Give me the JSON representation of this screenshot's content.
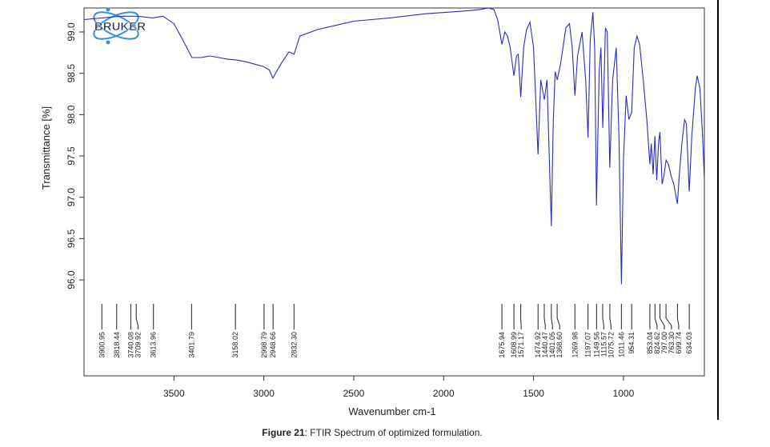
{
  "chart_data": {
    "type": "line",
    "logo": "BRUKER",
    "x_label": "Wavenumber cm-1",
    "y_label": "Transmittance [%]",
    "xlim": [
      4000,
      550
    ],
    "ylim": [
      94.84,
      99.29
    ],
    "xticks": [
      3500,
      3000,
      2500,
      2000,
      1500,
      1000
    ],
    "yticks": [
      {
        "value": 96,
        "label": "96.0"
      },
      96.5,
      {
        "value": 97,
        "label": "97.0"
      },
      97.5,
      {
        "value": 98,
        "label": "98.0"
      },
      98.5,
      {
        "value": 99,
        "label": "99.0"
      }
    ],
    "series": [
      {
        "color": "#2b2bc8",
        "x": [
          4000,
          3800,
          3700,
          3620,
          3560,
          3500,
          3450,
          3400,
          3350,
          3300,
          3250,
          3200,
          3150,
          3100,
          3050,
          3000,
          2970,
          2950,
          2930,
          2900,
          2860,
          2832,
          2800,
          2700,
          2600,
          2500,
          2300,
          2100,
          1900,
          1800,
          1750,
          1720,
          1700,
          1676,
          1660,
          1645,
          1630,
          1609,
          1595,
          1585,
          1571,
          1555,
          1540,
          1520,
          1500,
          1475,
          1460,
          1440,
          1425,
          1401,
          1390,
          1380,
          1368,
          1350,
          1320,
          1300,
          1285,
          1270,
          1255,
          1230,
          1210,
          1197,
          1185,
          1170,
          1160,
          1150,
          1135,
          1125,
          1115,
          1100,
          1090,
          1076,
          1060,
          1040,
          1025,
          1011,
          1000,
          985,
          970,
          954,
          940,
          925,
          910,
          890,
          870,
          853,
          845,
          835,
          825,
          815,
          805,
          797,
          785,
          775,
          763,
          750,
          735,
          720,
          700,
          690,
          675,
          660,
          650,
          634,
          620,
          600,
          590,
          575,
          560,
          550
        ],
        "values": [
          99.15,
          99.19,
          99.19,
          99.17,
          99.19,
          99.1,
          98.9,
          98.69,
          98.69,
          98.71,
          98.69,
          98.67,
          98.66,
          98.64,
          98.61,
          98.58,
          98.54,
          98.44,
          98.52,
          98.63,
          98.76,
          98.73,
          98.95,
          99.03,
          99.08,
          99.13,
          99.17,
          99.22,
          99.25,
          99.27,
          99.29,
          99.27,
          99.15,
          98.85,
          99.0,
          98.95,
          98.81,
          98.47,
          98.71,
          98.73,
          98.21,
          98.81,
          99.02,
          99.12,
          98.81,
          97.52,
          98.42,
          98.18,
          98.42,
          96.65,
          97.94,
          98.52,
          98.42,
          98.61,
          99.05,
          99.1,
          98.81,
          98.23,
          98.71,
          99.0,
          98.42,
          97.72,
          98.9,
          99.24,
          98.81,
          96.9,
          98.52,
          98.81,
          97.84,
          99.05,
          99.0,
          97.36,
          98.42,
          98.81,
          97.74,
          95.95,
          97.45,
          98.23,
          97.94,
          98.03,
          98.81,
          98.95,
          98.85,
          98.42,
          97.94,
          97.4,
          97.65,
          97.28,
          97.74,
          97.21,
          97.65,
          97.79,
          97.16,
          97.26,
          97.45,
          97.4,
          97.26,
          97.16,
          96.92,
          97.26,
          97.65,
          97.94,
          97.89,
          97.07,
          97.74,
          98.32,
          98.47,
          98.32,
          97.74,
          97.21
        ]
      }
    ],
    "peaks": [
      3900.95,
      3818.44,
      3740.08,
      3709.92,
      3613.96,
      3401.79,
      3158.02,
      2998.79,
      2948.66,
      {
        "value": 2832.3,
        "label": "2832.30"
      },
      1675.94,
      1608.99,
      1571.17,
      1474.92,
      1440.47,
      1401.05,
      {
        "value": 1368.6,
        "label": "1368.60"
      },
      1269.98,
      1197.07,
      1149.56,
      1115.57,
      1075.72,
      1011.46,
      954.31,
      853.04,
      824.62,
      {
        "value": 797,
        "label": "797.00"
      },
      {
        "value": 763.3,
        "label": "763.30"
      },
      699.74,
      634.03
    ]
  },
  "caption": {
    "label": "Figure 21",
    "text": ": FTIR Spectrum of optimized formulation."
  }
}
